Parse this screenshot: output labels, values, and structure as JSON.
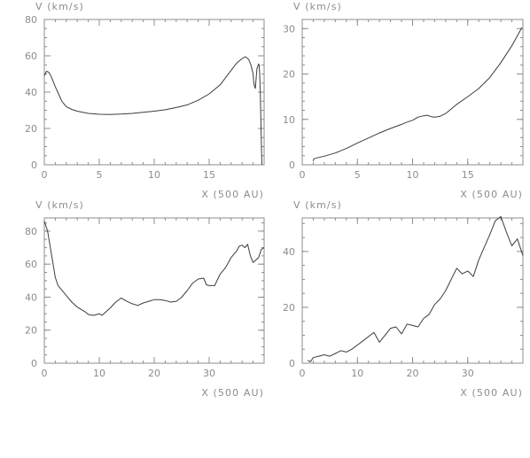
{
  "chart_data": [
    {
      "type": "line",
      "ylabel": "V (km/s)",
      "xlabel": "X (500 AU)",
      "xlim": [
        0,
        20
      ],
      "ylim": [
        0,
        80
      ],
      "xticks": [
        0,
        5,
        10,
        15
      ],
      "yticks": [
        0,
        20,
        40,
        60,
        80
      ],
      "xtick_labels": [
        "0",
        "5",
        "10",
        "15"
      ],
      "ytick_labels": [
        "0",
        "20",
        "40",
        "60",
        "80"
      ],
      "x_minor": 1,
      "y_minor": 5,
      "series": [
        {
          "x": [
            0,
            0.2,
            0.4,
            0.6,
            0.8,
            1,
            1.3,
            1.6,
            2,
            2.5,
            3,
            4,
            5,
            6,
            7,
            8,
            9,
            10,
            11,
            12,
            13,
            14,
            15,
            16,
            16.5,
            17,
            17.5,
            18,
            18.3,
            18.6,
            18.8,
            19,
            19.05,
            19.1,
            19.2,
            19.35,
            19.5,
            19.55,
            19.6,
            19.65,
            19.7,
            19.75,
            19.8
          ],
          "y": [
            49,
            51.5,
            51,
            49,
            46,
            43,
            39,
            35,
            32,
            30.5,
            29.5,
            28.3,
            27.8,
            27.7,
            27.9,
            28.3,
            28.9,
            29.5,
            30.3,
            31.5,
            33,
            35.5,
            39,
            44,
            48,
            52,
            56,
            58.5,
            59.5,
            58,
            55,
            50,
            46,
            44,
            42,
            53,
            55.5,
            55,
            50,
            40,
            25,
            12,
            0
          ]
        }
      ]
    },
    {
      "type": "line",
      "ylabel": "V (km/s)",
      "xlabel": "X (500 AU)",
      "xlim": [
        0,
        20
      ],
      "ylim": [
        0,
        32
      ],
      "xticks": [
        0,
        5,
        10,
        15
      ],
      "yticks": [
        0,
        10,
        20,
        30
      ],
      "xtick_labels": [
        "0",
        "5",
        "10",
        "15"
      ],
      "ytick_labels": [
        "0",
        "10",
        "20",
        "30"
      ],
      "x_minor": 1,
      "y_minor": 2,
      "series": [
        {
          "x": [
            1,
            1.05,
            1.3,
            2,
            3,
            4,
            5,
            6,
            7,
            8,
            9,
            9.5,
            10,
            10.5,
            11,
            11.3,
            11.7,
            12,
            12.5,
            13,
            13.5,
            14,
            15,
            16,
            17,
            18,
            19,
            19.9
          ],
          "y": [
            0.8,
            1.3,
            1.5,
            1.9,
            2.6,
            3.6,
            4.8,
            5.9,
            7,
            8,
            8.9,
            9.4,
            9.8,
            10.5,
            10.8,
            10.9,
            10.6,
            10.5,
            10.7,
            11.3,
            12.3,
            13.3,
            15,
            16.8,
            19.2,
            22.5,
            26.2,
            30.2
          ]
        }
      ]
    },
    {
      "type": "line",
      "ylabel": "V (km/s)",
      "xlabel": "X (500 AU)",
      "xlim": [
        0,
        40
      ],
      "ylim": [
        0,
        88
      ],
      "xticks": [
        0,
        10,
        20,
        30
      ],
      "yticks": [
        0,
        20,
        40,
        60,
        80
      ],
      "xtick_labels": [
        "0",
        "10",
        "20",
        "30"
      ],
      "ytick_labels": [
        "0",
        "20",
        "40",
        "60",
        "80"
      ],
      "x_minor": 2,
      "y_minor": 5,
      "series": [
        {
          "x": [
            0,
            0.3,
            0.6,
            1,
            1.5,
            2,
            2.5,
            3,
            4,
            5,
            6,
            7,
            7.5,
            8,
            9,
            10,
            10.5,
            11,
            12,
            13,
            14,
            15,
            16,
            17,
            18,
            19,
            20,
            21,
            22,
            23,
            24,
            25,
            26,
            27,
            28,
            29,
            29.5,
            30,
            31,
            32,
            33,
            34,
            35,
            35.5,
            36,
            36.5,
            37,
            37.5,
            38,
            39,
            39.5,
            40
          ],
          "y": [
            86,
            83,
            80,
            72,
            62,
            52,
            47,
            45,
            41,
            37,
            34,
            32,
            31,
            29.5,
            29,
            30,
            29,
            30.5,
            33.5,
            37,
            39.5,
            37.5,
            36,
            35,
            36.5,
            37.5,
            38.5,
            38.5,
            38,
            37,
            37.5,
            40,
            44,
            48.5,
            51,
            51.5,
            47.5,
            47,
            47,
            54,
            58,
            64,
            68,
            71,
            71.5,
            70,
            72,
            65,
            61,
            64,
            69,
            70
          ]
        }
      ]
    },
    {
      "type": "line",
      "ylabel": "V (km/s)",
      "xlabel": "X (500 AU)",
      "xlim": [
        0,
        40
      ],
      "ylim": [
        0,
        52
      ],
      "xticks": [
        0,
        10,
        20,
        30
      ],
      "yticks": [
        0,
        20,
        40
      ],
      "xtick_labels": [
        "0",
        "10",
        "20",
        "30"
      ],
      "ytick_labels": [
        "0",
        "20",
        "40"
      ],
      "x_minor": 2,
      "y_minor": 5,
      "series": [
        {
          "x": [
            1,
            1.5,
            2,
            3,
            4,
            5,
            6,
            7,
            8,
            9,
            10,
            11,
            12,
            13,
            14,
            15,
            16,
            17,
            18,
            19,
            20,
            21,
            22,
            23,
            24,
            25,
            26,
            27,
            28,
            29,
            30,
            31,
            32,
            33,
            34,
            35,
            36,
            37,
            38,
            39,
            40
          ],
          "y": [
            1,
            0.5,
            2,
            2.5,
            3,
            2.5,
            3.5,
            4.5,
            4,
            5,
            6.5,
            8,
            9.5,
            11,
            7.5,
            10,
            12.5,
            13,
            10.5,
            14,
            13.5,
            13,
            16,
            17.5,
            21,
            23,
            26,
            30,
            34,
            32,
            33,
            31,
            37,
            41.5,
            46,
            51,
            52.5,
            47,
            42,
            44.5,
            38.5
          ]
        }
      ]
    }
  ]
}
